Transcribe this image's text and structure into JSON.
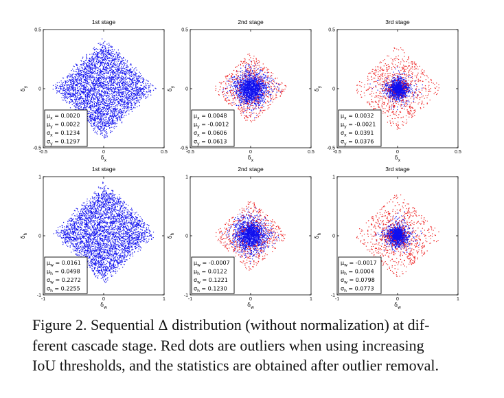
{
  "figure": {
    "panel_titles": [
      "1st stage",
      "2nd stage",
      "3rd stage",
      "1st stage",
      "2nd stage",
      "3rd stage"
    ],
    "colors": {
      "inlier": "#1010ee",
      "outlier": "#ee2222",
      "axis": "#000000"
    }
  },
  "chart_data": [
    {
      "type": "scatter",
      "title": "1st stage",
      "xlabel": "δx",
      "ylabel": "δy",
      "xlim": [
        -0.5,
        0.5
      ],
      "ylim": [
        -0.5,
        0.5
      ],
      "xticks": [
        "-0.5",
        "0",
        "0.5"
      ],
      "yticks": [
        "-0.5",
        "0",
        "0.5"
      ],
      "stats": [
        {
          "label": "μx",
          "value": "0.0020"
        },
        {
          "label": "μy",
          "value": "0.0022"
        },
        {
          "label": "σx",
          "value": "0.1234"
        },
        {
          "label": "σy",
          "value": "0.1297"
        }
      ],
      "series": [
        {
          "color": "blue",
          "mu": [
            0.002,
            0.0022
          ],
          "sigma": [
            0.1234,
            0.1297
          ]
        }
      ]
    },
    {
      "type": "scatter",
      "title": "2nd stage",
      "xlabel": "δx",
      "ylabel": "δy",
      "xlim": [
        -0.5,
        0.5
      ],
      "ylim": [
        -0.5,
        0.5
      ],
      "xticks": [
        "-0.5",
        "0",
        "0.5"
      ],
      "yticks": [
        "-0.5",
        "0",
        "0.5"
      ],
      "stats": [
        {
          "label": "μx",
          "value": "0.0048"
        },
        {
          "label": "μy",
          "value": "-0.0012"
        },
        {
          "label": "σx",
          "value": "0.0606"
        },
        {
          "label": "σy",
          "value": "0.0613"
        }
      ],
      "series": [
        {
          "color": "blue",
          "mu": [
            0.0048,
            -0.0012
          ],
          "sigma": [
            0.0606,
            0.0613
          ]
        },
        {
          "color": "red",
          "note": "outliers"
        }
      ]
    },
    {
      "type": "scatter",
      "title": "3rd stage",
      "xlabel": "δx",
      "ylabel": "δy",
      "xlim": [
        -0.5,
        0.5
      ],
      "ylim": [
        -0.5,
        0.5
      ],
      "xticks": [
        "-0.5",
        "0",
        "0.5"
      ],
      "yticks": [
        "-0.5",
        "0",
        "0.5"
      ],
      "stats": [
        {
          "label": "μx",
          "value": "0.0032"
        },
        {
          "label": "μy",
          "value": "-0.0021"
        },
        {
          "label": "σx",
          "value": "0.0391"
        },
        {
          "label": "σy",
          "value": "0.0376"
        }
      ],
      "series": [
        {
          "color": "blue",
          "mu": [
            0.0032,
            -0.0021
          ],
          "sigma": [
            0.0391,
            0.0376
          ]
        },
        {
          "color": "red",
          "note": "outliers"
        }
      ]
    },
    {
      "type": "scatter",
      "title": "1st stage",
      "xlabel": "δw",
      "ylabel": "δh",
      "xlim": [
        -1,
        1
      ],
      "ylim": [
        -1,
        1
      ],
      "xticks": [
        "-1",
        "0",
        "1"
      ],
      "yticks": [
        "-1",
        "0",
        "1"
      ],
      "stats": [
        {
          "label": "μw",
          "value": "0.0161"
        },
        {
          "label": "μh",
          "value": "0.0498"
        },
        {
          "label": "σw",
          "value": "0.2272"
        },
        {
          "label": "σh",
          "value": "0.2255"
        }
      ],
      "series": [
        {
          "color": "blue",
          "mu": [
            0.0161,
            0.0498
          ],
          "sigma": [
            0.2272,
            0.2255
          ]
        }
      ]
    },
    {
      "type": "scatter",
      "title": "2nd stage",
      "xlabel": "δw",
      "ylabel": "δh",
      "xlim": [
        -1,
        1
      ],
      "ylim": [
        -1,
        1
      ],
      "xticks": [
        "-1",
        "0",
        "1"
      ],
      "yticks": [
        "-1",
        "0",
        "1"
      ],
      "stats": [
        {
          "label": "μw",
          "value": "-0.0007"
        },
        {
          "label": "μh",
          "value": "0.0122"
        },
        {
          "label": "σw",
          "value": "0.1221"
        },
        {
          "label": "σh",
          "value": "0.1230"
        }
      ],
      "series": [
        {
          "color": "blue",
          "mu": [
            -0.0007,
            0.0122
          ],
          "sigma": [
            0.1221,
            0.123
          ]
        },
        {
          "color": "red",
          "note": "outliers"
        }
      ]
    },
    {
      "type": "scatter",
      "title": "3rd stage",
      "xlabel": "δw",
      "ylabel": "δh",
      "xlim": [
        -1,
        1
      ],
      "ylim": [
        -1,
        1
      ],
      "xticks": [
        "-1",
        "0",
        "1"
      ],
      "yticks": [
        "-1",
        "0",
        "1"
      ],
      "stats": [
        {
          "label": "μw",
          "value": "-0.0017"
        },
        {
          "label": "μh",
          "value": "0.0004"
        },
        {
          "label": "σw",
          "value": "0.0798"
        },
        {
          "label": "σh",
          "value": "0.0773"
        }
      ],
      "series": [
        {
          "color": "blue",
          "mu": [
            -0.0017,
            0.0004
          ],
          "sigma": [
            0.0798,
            0.0773
          ]
        },
        {
          "color": "red",
          "note": "outliers"
        }
      ]
    }
  ],
  "caption": {
    "line1_a": "Figure 2. Sequential ",
    "line1_delta": "Δ",
    "line1_b": " distribution (without normalization) at dif-",
    "line2": "ferent cascade stage. Red dots are outliers when using increasing",
    "line3": "IoU thresholds, and the statistics are obtained after outlier removal."
  }
}
